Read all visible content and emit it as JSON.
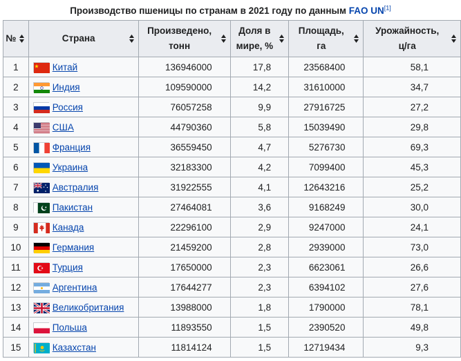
{
  "caption": {
    "text": "Производство пшеницы по странам в 2021 году по данным ",
    "link": "FAO UN",
    "ref": "[1]"
  },
  "headers": {
    "num": "№",
    "country": "Страна",
    "production_l1": "Произведено,",
    "production_l2": "тонн",
    "share_l1": "Доля в",
    "share_l2": "мире, %",
    "area_l1": "Площадь,",
    "area_l2": "га",
    "yield_l1": "Урожайность,",
    "yield_l2": "ц/га"
  },
  "rows": [
    {
      "num": "1",
      "country": "Китай",
      "flag": "china-flag-icon",
      "production": "136946000",
      "share": "17,8",
      "area": "23568400",
      "yield": "58,1"
    },
    {
      "num": "2",
      "country": "Индия",
      "flag": "india-flag-icon",
      "production": "109590000",
      "share": "14,2",
      "area": "31610000",
      "yield": "34,7"
    },
    {
      "num": "3",
      "country": "Россия",
      "flag": "russia-flag-icon",
      "production": "76057258",
      "share": "9,9",
      "area": "27916725",
      "yield": "27,2"
    },
    {
      "num": "4",
      "country": "США",
      "flag": "usa-flag-icon",
      "production": "44790360",
      "share": "5,8",
      "area": "15039490",
      "yield": "29,8"
    },
    {
      "num": "5",
      "country": "Франция",
      "flag": "france-flag-icon",
      "production": "36559450",
      "share": "4,7",
      "area": "5276730",
      "yield": "69,3"
    },
    {
      "num": "6",
      "country": "Украина",
      "flag": "ukraine-flag-icon",
      "production": "32183300",
      "share": "4,2",
      "area": "7099400",
      "yield": "45,3"
    },
    {
      "num": "7",
      "country": "Австралия",
      "flag": "australia-flag-icon",
      "production": "31922555",
      "share": "4,1",
      "area": "12643216",
      "yield": "25,2"
    },
    {
      "num": "8",
      "country": "Пакистан",
      "flag": "pakistan-flag-icon",
      "production": "27464081",
      "share": "3,6",
      "area": "9168249",
      "yield": "30,0"
    },
    {
      "num": "9",
      "country": "Канада",
      "flag": "canada-flag-icon",
      "production": "22296100",
      "share": "2,9",
      "area": "9247000",
      "yield": "24,1"
    },
    {
      "num": "10",
      "country": "Германия",
      "flag": "germany-flag-icon",
      "production": "21459200",
      "share": "2,8",
      "area": "2939000",
      "yield": "73,0"
    },
    {
      "num": "11",
      "country": "Турция",
      "flag": "turkey-flag-icon",
      "production": "17650000",
      "share": "2,3",
      "area": "6623061",
      "yield": "26,6"
    },
    {
      "num": "12",
      "country": "Аргентина",
      "flag": "argentina-flag-icon",
      "production": "17644277",
      "share": "2,3",
      "area": "6394102",
      "yield": "27,6"
    },
    {
      "num": "13",
      "country": "Великобритания",
      "flag": "uk-flag-icon",
      "production": "13988000",
      "share": "1,8",
      "area": "1790000",
      "yield": "78,1"
    },
    {
      "num": "14",
      "country": "Польша",
      "flag": "poland-flag-icon",
      "production": "11893550",
      "share": "1,5",
      "area": "2390520",
      "yield": "49,8"
    },
    {
      "num": "15",
      "country": "Казахстан",
      "flag": "kazakhstan-flag-icon",
      "production": "11814124",
      "share": "1,5",
      "area": "12719434",
      "yield": "9,3"
    }
  ]
}
